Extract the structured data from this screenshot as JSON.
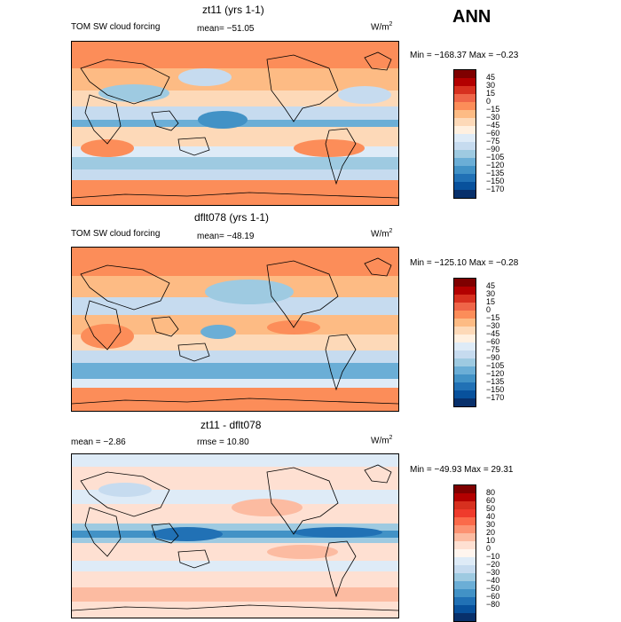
{
  "season": "ANN",
  "panels": [
    {
      "title": "zt11 (yrs 1-1)",
      "variable": "TOM SW cloud forcing",
      "mean_label": "mean= −51.05",
      "units": "W/m",
      "units_exp": "2",
      "minmax": "Min = −168.37 Max =  −0.23",
      "colorbar": {
        "colors": [
          "#7f0000",
          "#b30000",
          "#d7301f",
          "#ef6548",
          "#fc8d59",
          "#fdbb84",
          "#fdd9b8",
          "#fff0e0",
          "#deebf7",
          "#c6dbef",
          "#9ecae1",
          "#6baed6",
          "#4292c6",
          "#2171b5",
          "#08519c",
          "#08306b"
        ],
        "labels": [
          "45",
          "30",
          "15",
          "0",
          "−15",
          "−30",
          "−45",
          "−60",
          "−75",
          "−90",
          "−105",
          "−120",
          "−135",
          "−150",
          "−170"
        ]
      }
    },
    {
      "title": "dflt078 (yrs 1-1)",
      "variable": "TOM SW cloud forcing",
      "mean_label": "mean= −48.19",
      "units": "W/m",
      "units_exp": "2",
      "minmax": "Min = −125.10 Max =  −0.28",
      "colorbar": {
        "colors": [
          "#7f0000",
          "#b30000",
          "#d7301f",
          "#ef6548",
          "#fc8d59",
          "#fdbb84",
          "#fdd9b8",
          "#fff0e0",
          "#deebf7",
          "#c6dbef",
          "#9ecae1",
          "#6baed6",
          "#4292c6",
          "#2171b5",
          "#08519c",
          "#08306b"
        ],
        "labels": [
          "45",
          "30",
          "15",
          "0",
          "−15",
          "−30",
          "−45",
          "−60",
          "−75",
          "−90",
          "−105",
          "−120",
          "−135",
          "−150",
          "−170"
        ]
      }
    },
    {
      "title": "zt11 - dflt078",
      "mean_label": "mean =  −2.86",
      "rmse_label": "rmse =  10.80",
      "units": "W/m",
      "units_exp": "2",
      "minmax": "Min = −49.93 Max =  29.31",
      "colorbar": {
        "colors": [
          "#7f0000",
          "#b30000",
          "#d7301f",
          "#ef3b2c",
          "#fb6a4a",
          "#fc9272",
          "#fcbba1",
          "#fee0d2",
          "#fff5ee",
          "#deebf7",
          "#c6dbef",
          "#9ecae1",
          "#6baed6",
          "#4292c6",
          "#2171b5",
          "#08519c",
          "#08306b"
        ],
        "labels": [
          "80",
          "60",
          "50",
          "40",
          "30",
          "20",
          "10",
          "0",
          "−10",
          "−20",
          "−30",
          "−40",
          "−50",
          "−60",
          "−80"
        ]
      }
    }
  ]
}
